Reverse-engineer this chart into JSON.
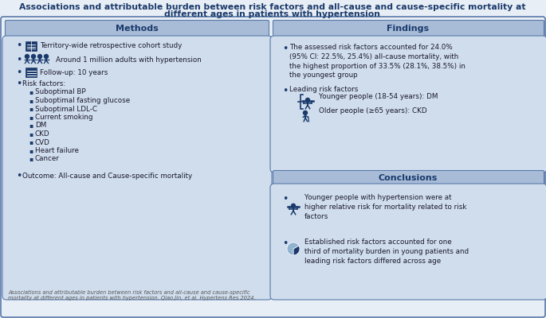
{
  "title_line1": "Associations and attributable burden between risk factors and all-cause and cause-specific mortality at",
  "title_line2": "different ages in patients with hypertension",
  "title_color": "#1a3a6b",
  "title_fontsize": 8.0,
  "bg_color": "#e8eef5",
  "box_bg": "#d0dded",
  "header_bg": "#a8bcd8",
  "border_color": "#5a7aaa",
  "text_color": "#1a1a2e",
  "dark_blue": "#1a3a6b",
  "methods_header": "Methods",
  "findings_header": "Findings",
  "conclusions_header": "Conclusions",
  "findings_bullet1": "The assessed risk factors accounted for 24.0%\n(95% CI: 22.5%, 25.4%) all-cause mortality, with\nthe highest proportion of 33.5% (28.1%, 38.5%) in\nthe youngest group",
  "findings_bullet2": "Leading risk factors",
  "findings_younger": "Younger people (18-54 years): DM",
  "findings_older": "Older people (≥65 years): CKD",
  "conclusions_bullet1": "Younger people with hypertension were at\nhigher relative risk for mortality related to risk\nfactors",
  "conclusions_bullet2": "Established risk factors accounted for one\nthird of mortality burden in young patients and\nleading risk factors differed across age",
  "footer_text": "Associations and attributable burden between risk factors and all-cause and cause-specific\nmortality at different ages in patients with hypertension. Qiao Jin, et al. Hypertens Res 2024.",
  "sub_items": [
    "Suboptimal BP",
    "Suboptimal fasting glucose",
    "Suboptimal LDL-C",
    "Current smoking",
    "DM",
    "CKD",
    "CVD",
    "Heart failure",
    "Cancer"
  ]
}
